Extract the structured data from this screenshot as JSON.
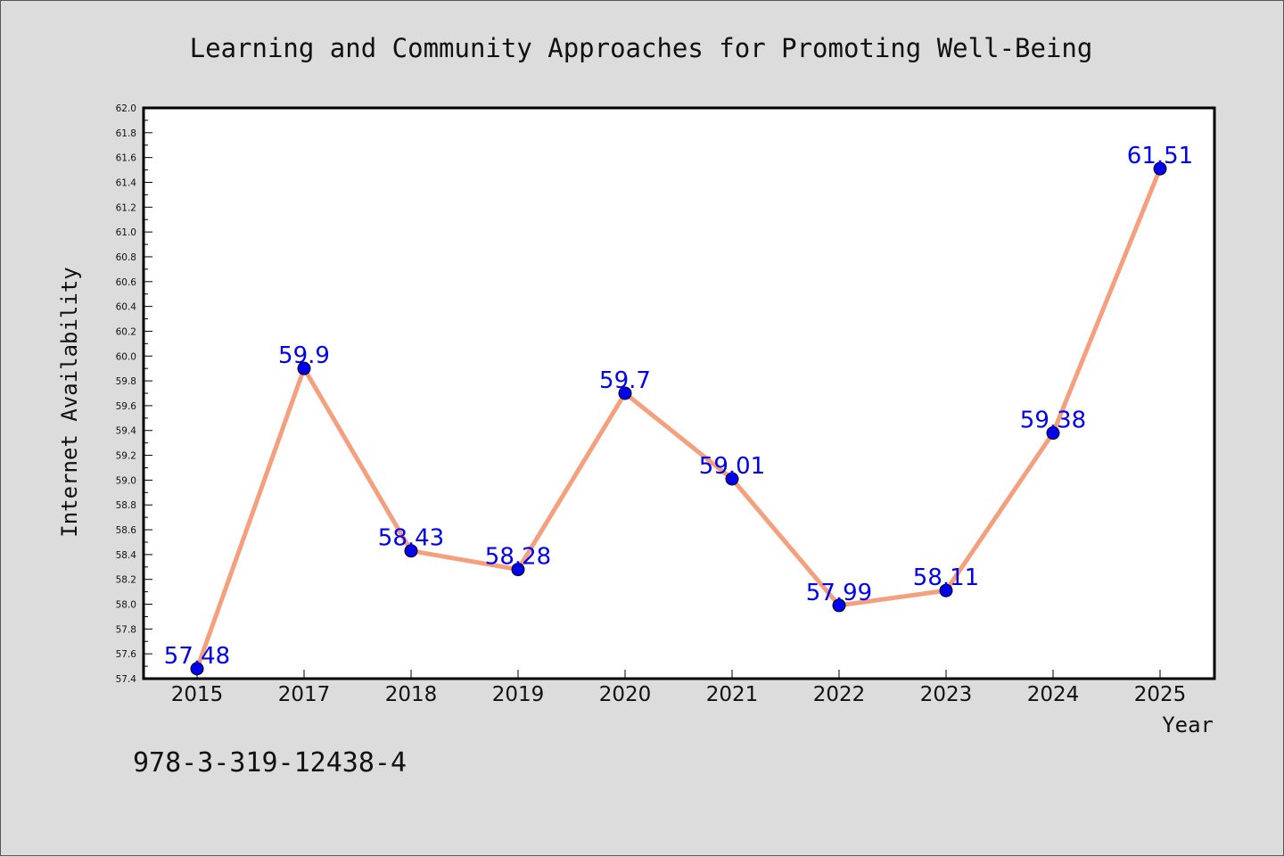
{
  "chart_data": {
    "type": "line",
    "title": "Learning and Community Approaches for Promoting Well-Being",
    "xlabel": "Year",
    "ylabel": "Internet Availability",
    "categories": [
      "2015",
      "2017",
      "2018",
      "2019",
      "2020",
      "2021",
      "2022",
      "2023",
      "2024",
      "2025"
    ],
    "series": [
      {
        "values": [
          57.48,
          59.9,
          58.43,
          58.28,
          59.7,
          59.01,
          57.99,
          58.11,
          59.38,
          61.51
        ],
        "labels": [
          "57.48",
          "59.9",
          "58.43",
          "58.28",
          "59.7",
          "59.01",
          "57.99",
          "58.11",
          "59.38",
          "61.51"
        ]
      }
    ],
    "ylim": [
      57.4,
      62.0
    ],
    "yticks": [
      "57.4",
      "57.6",
      "57.8",
      "58.0",
      "58.2",
      "58.4",
      "58.6",
      "58.8",
      "59.0",
      "59.2",
      "59.4",
      "59.6",
      "59.8",
      "60.0",
      "60.2",
      "60.4",
      "60.6",
      "60.8",
      "61.0",
      "61.2",
      "61.4",
      "61.6",
      "61.8",
      "62.0"
    ],
    "grid": false,
    "legend": "none",
    "colors": {
      "line": "#f4a07e",
      "marker": "#0000ee",
      "label": "#0000ee",
      "background": "#dcdcdc",
      "plot_background": "#ffffff"
    }
  },
  "annotation": {
    "isbn": "978-3-319-12438-4"
  }
}
